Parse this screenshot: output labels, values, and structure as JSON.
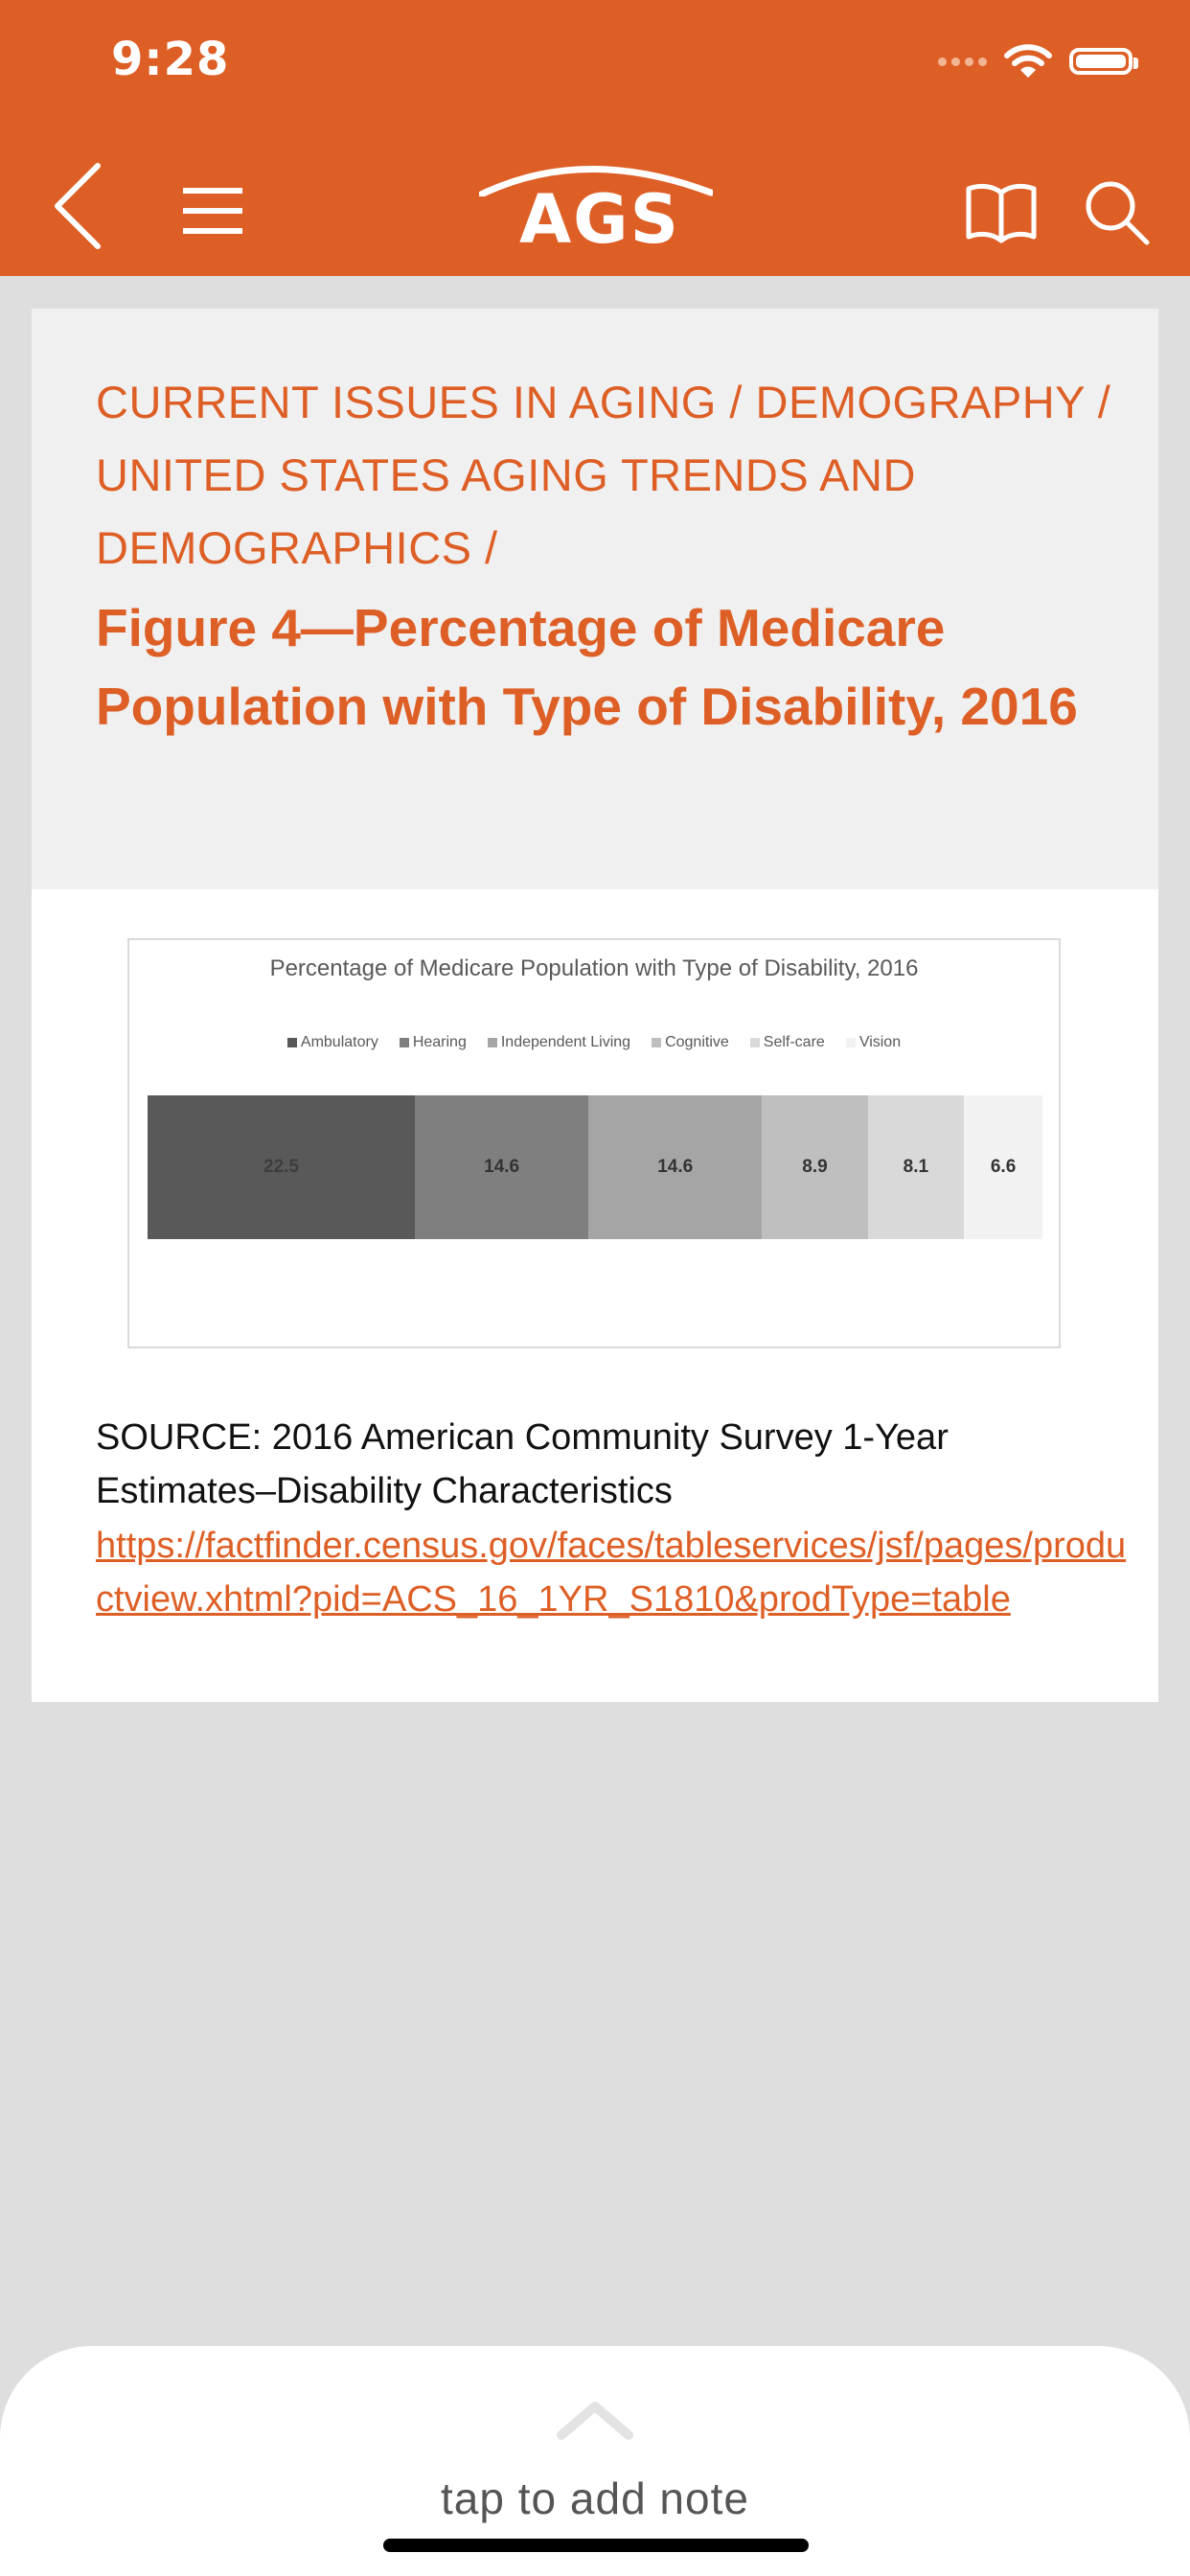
{
  "status_bar": {
    "time": "9:28"
  },
  "header": {
    "logo_text": "AGS",
    "colors": {
      "header_bg": "#de5f26",
      "icon": "#ffffff"
    }
  },
  "breadcrumb": "CURRENT ISSUES IN AGING / DEMOGRAPHY / UNITED STATES AGING TRENDS AND DEMOGRAPHICS /",
  "figure_title": "Figure 4—Percentage of Medicare Population with Type of Disability, 2016",
  "chart_data": {
    "type": "bar",
    "orientation": "horizontal-stacked",
    "title": "Percentage of Medicare Population with Type of Disability, 2016",
    "categories": [
      "Ambulatory",
      "Hearing",
      "Independent Living",
      "Cognitive",
      "Self-care",
      "Vision"
    ],
    "values": [
      22.5,
      14.6,
      14.6,
      8.9,
      8.1,
      6.6
    ],
    "labels": [
      "22.5",
      "14.6",
      "14.6",
      "8.9",
      "8.1",
      "6.6"
    ],
    "colors": [
      "#595959",
      "#7f7f7f",
      "#a5a5a5",
      "#bfbfbf",
      "#d9d9d9",
      "#f2f2f2"
    ],
    "label_colors": [
      "#3d3d3d",
      "#333333",
      "#333333",
      "#333333",
      "#333333",
      "#333333"
    ],
    "legend_position": "top",
    "xlabel": "",
    "ylabel": ""
  },
  "source": {
    "text": "SOURCE: 2016 American Community Survey 1-Year Estimates–Disability Characteristics",
    "link": "https://factfinder.census.gov/faces/tableservices/jsf/pages/productview.xhtml?pid=ACS_16_1YR_S1810&prodType=table"
  },
  "note": {
    "label": "tap to add note"
  }
}
